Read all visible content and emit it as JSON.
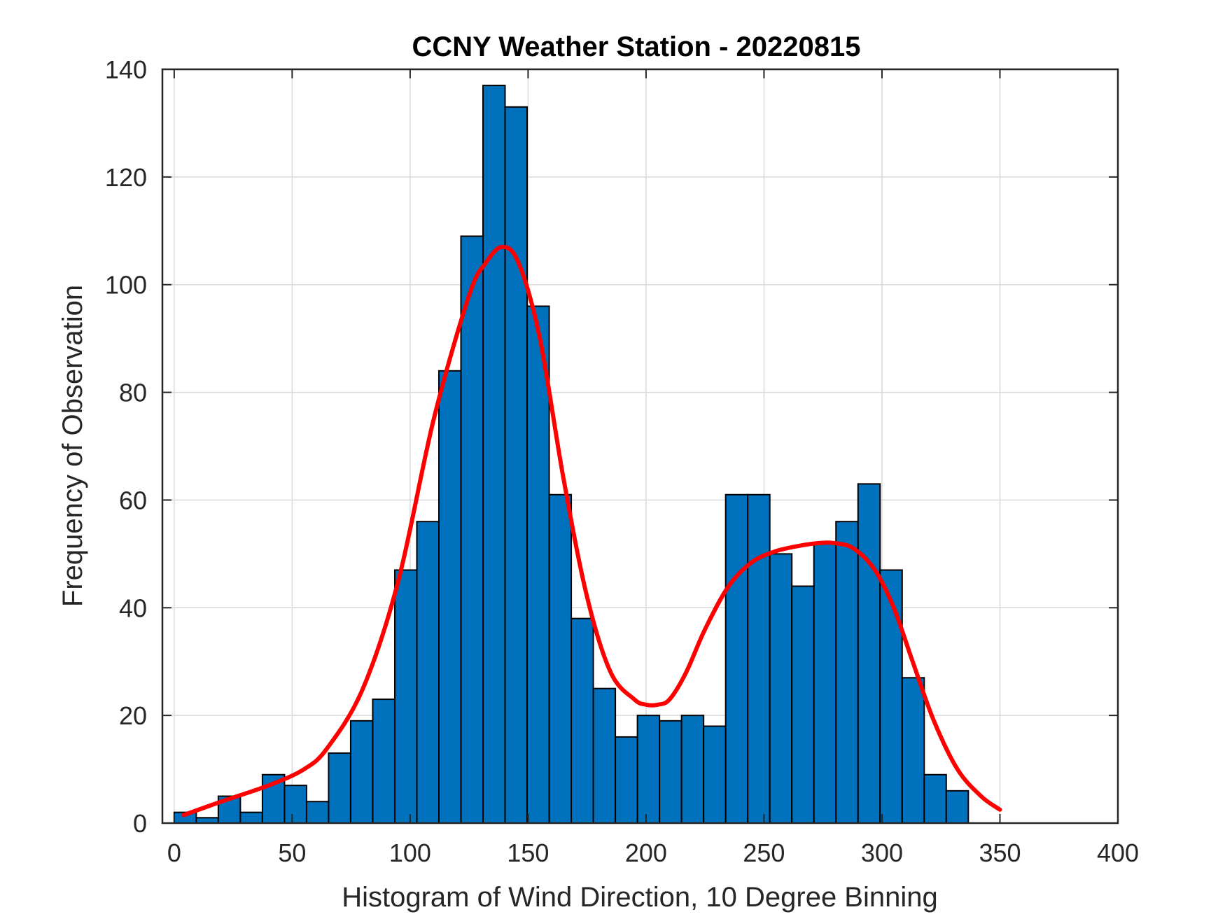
{
  "chart_data": {
    "type": "bar",
    "title": "CCNY Weather Station - 20220815",
    "xlabel": "Histogram of Wind Direction, 10 Degree Binning",
    "ylabel": "Frequency of Observation",
    "xlim": [
      -5,
      400
    ],
    "ylim": [
      0,
      140
    ],
    "grid": true,
    "xticks": [
      0,
      50,
      100,
      150,
      200,
      250,
      300,
      350,
      400
    ],
    "yticks": [
      0,
      20,
      40,
      60,
      80,
      100,
      120,
      140
    ],
    "xtick_labels": [
      "0",
      "50",
      "100",
      "150",
      "200",
      "250",
      "300",
      "350",
      "400"
    ],
    "ytick_labels": [
      "0",
      "20",
      "40",
      "60",
      "80",
      "100",
      "120",
      "140"
    ],
    "bin_width": 9.35,
    "bins": [
      {
        "x0": 0.0,
        "value": 2
      },
      {
        "x0": 9.35,
        "value": 1
      },
      {
        "x0": 18.7,
        "value": 5
      },
      {
        "x0": 28.05,
        "value": 2
      },
      {
        "x0": 37.4,
        "value": 9
      },
      {
        "x0": 46.75,
        "value": 7
      },
      {
        "x0": 56.1,
        "value": 4
      },
      {
        "x0": 65.45,
        "value": 13
      },
      {
        "x0": 74.8,
        "value": 19
      },
      {
        "x0": 84.15,
        "value": 23
      },
      {
        "x0": 93.5,
        "value": 47
      },
      {
        "x0": 102.85,
        "value": 56
      },
      {
        "x0": 112.2,
        "value": 84
      },
      {
        "x0": 121.55,
        "value": 109
      },
      {
        "x0": 130.9,
        "value": 137
      },
      {
        "x0": 140.25,
        "value": 133
      },
      {
        "x0": 149.6,
        "value": 96
      },
      {
        "x0": 158.95,
        "value": 61
      },
      {
        "x0": 168.3,
        "value": 38
      },
      {
        "x0": 177.65,
        "value": 25
      },
      {
        "x0": 187.0,
        "value": 16
      },
      {
        "x0": 196.35,
        "value": 20
      },
      {
        "x0": 205.7,
        "value": 19
      },
      {
        "x0": 215.05,
        "value": 20
      },
      {
        "x0": 224.4,
        "value": 18
      },
      {
        "x0": 233.75,
        "value": 61
      },
      {
        "x0": 243.1,
        "value": 61
      },
      {
        "x0": 252.45,
        "value": 50
      },
      {
        "x0": 261.8,
        "value": 44
      },
      {
        "x0": 271.15,
        "value": 52
      },
      {
        "x0": 280.5,
        "value": 56
      },
      {
        "x0": 289.85,
        "value": 63
      },
      {
        "x0": 299.2,
        "value": 47
      },
      {
        "x0": 308.55,
        "value": 27
      },
      {
        "x0": 317.9,
        "value": 9
      },
      {
        "x0": 327.25,
        "value": 6
      }
    ],
    "fit_curve": {
      "x": [
        4,
        20,
        40,
        55,
        65,
        80,
        95,
        110,
        125,
        132,
        139,
        146,
        155,
        165,
        175,
        185,
        195,
        200,
        205,
        210,
        217,
        225,
        235,
        245,
        255,
        265,
        273,
        280,
        288,
        297,
        305,
        313,
        322,
        332,
        342,
        350
      ],
      "y": [
        1.5,
        4,
        7,
        10,
        14,
        25,
        45,
        75,
        98,
        104,
        107,
        104,
        90,
        64,
        42,
        28,
        23,
        22,
        22,
        23,
        28,
        36,
        44,
        48.5,
        50.5,
        51.5,
        52,
        52,
        51,
        47,
        40,
        30,
        19,
        10,
        5,
        2.5
      ]
    },
    "colors": {
      "bar_fill": "#0072bd",
      "bar_edge": "#000000",
      "curve": "#ff0000",
      "grid": "#dadada",
      "axes": "#262626"
    }
  }
}
